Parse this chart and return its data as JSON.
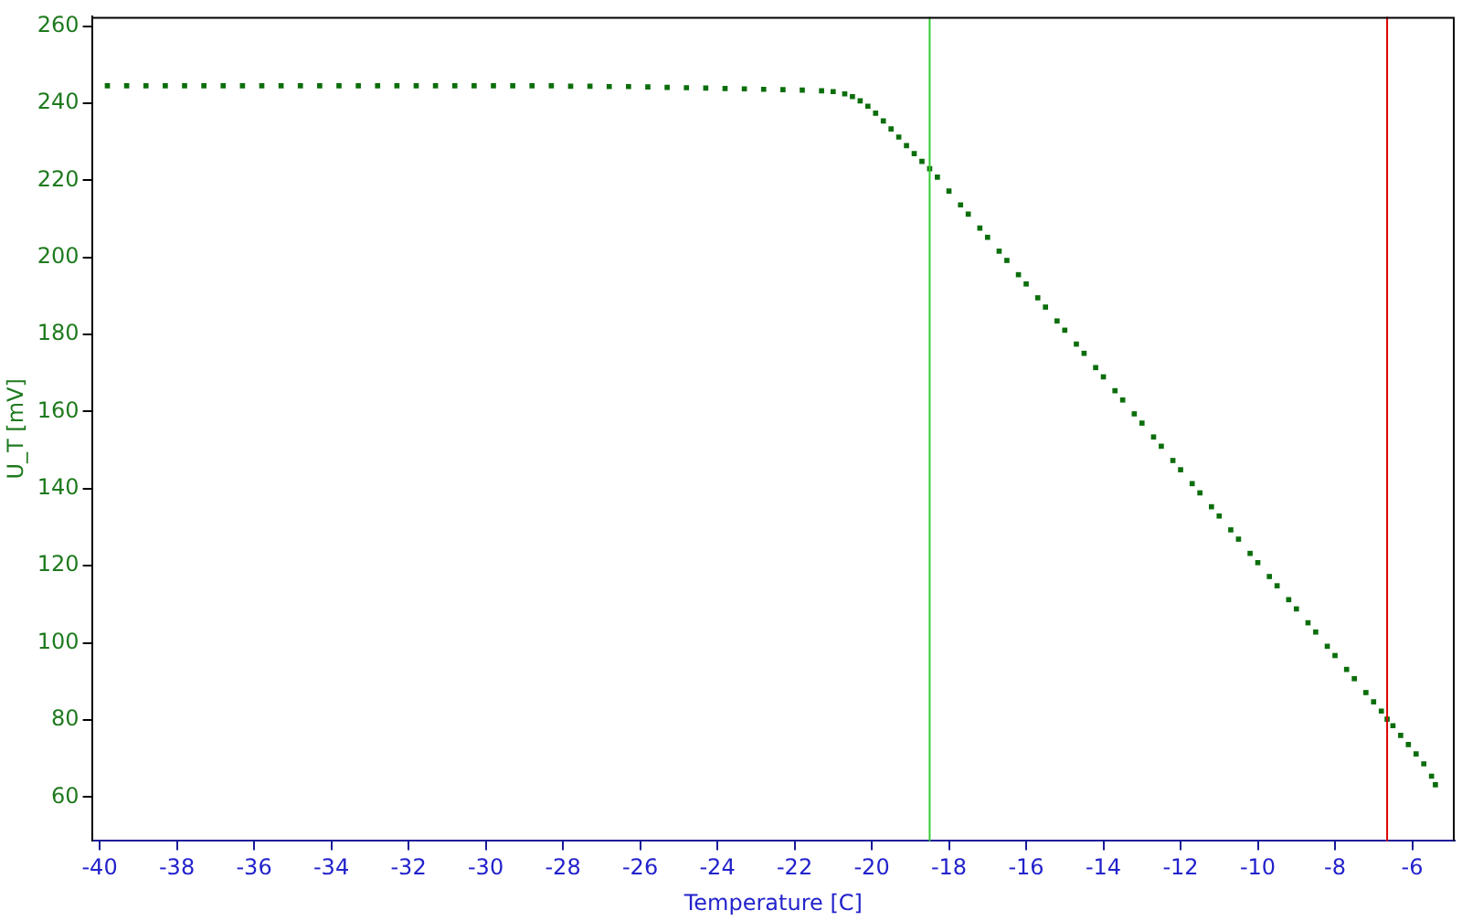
{
  "chart_data": {
    "type": "scatter",
    "xlabel": "Temperature [C]",
    "ylabel": "U_T [mV]",
    "xlim": [
      -40.2,
      -4.9
    ],
    "ylim": [
      48.6,
      262.4
    ],
    "xticks": [
      -40,
      -38,
      -36,
      -34,
      -32,
      -30,
      -28,
      -26,
      -24,
      -22,
      -20,
      -18,
      -16,
      -14,
      -12,
      -10,
      -8,
      -6
    ],
    "yticks": [
      60,
      80,
      100,
      120,
      140,
      160,
      180,
      200,
      220,
      240,
      260
    ],
    "grid": false,
    "legend": false,
    "marker": "square",
    "ref_lines": [
      {
        "axis": "x",
        "value": -18.5,
        "color": "#33cc33"
      },
      {
        "axis": "x",
        "value": -6.65,
        "color": "#dd0000"
      }
    ],
    "series": [
      {
        "color": "#0b6e0b",
        "x": [
          -39.8,
          -39.3,
          -38.8,
          -38.3,
          -37.8,
          -37.3,
          -36.8,
          -36.3,
          -35.8,
          -35.3,
          -34.8,
          -34.3,
          -33.8,
          -33.3,
          -32.8,
          -32.3,
          -31.8,
          -31.3,
          -30.8,
          -30.3,
          -29.8,
          -29.3,
          -28.8,
          -28.3,
          -27.8,
          -27.3,
          -26.8,
          -26.3,
          -25.8,
          -25.3,
          -24.8,
          -24.3,
          -23.8,
          -23.3,
          -22.8,
          -22.3,
          -21.8,
          -21.3,
          -21.0,
          -20.7,
          -20.5,
          -20.3,
          -20.1,
          -19.9,
          -19.7,
          -19.5,
          -19.3,
          -19.1,
          -18.9,
          -18.7,
          -18.5,
          -18.3,
          -18.0,
          -17.7,
          -17.5,
          -17.2,
          -17.0,
          -16.7,
          -16.5,
          -16.2,
          -16.0,
          -15.7,
          -15.5,
          -15.2,
          -15.0,
          -14.7,
          -14.5,
          -14.2,
          -14.0,
          -13.7,
          -13.5,
          -13.2,
          -13.0,
          -12.7,
          -12.5,
          -12.2,
          -12.0,
          -11.7,
          -11.5,
          -11.2,
          -11.0,
          -10.7,
          -10.5,
          -10.2,
          -10.0,
          -9.7,
          -9.5,
          -9.2,
          -9.0,
          -8.7,
          -8.5,
          -8.2,
          -8.0,
          -7.7,
          -7.5,
          -7.2,
          -7.0,
          -6.8,
          -6.65,
          -6.5,
          -6.3,
          -6.1,
          -5.9,
          -5.7,
          -5.5,
          -5.4
        ],
        "values": [
          244.5,
          244.5,
          244.5,
          244.5,
          244.5,
          244.5,
          244.5,
          244.5,
          244.5,
          244.5,
          244.5,
          244.5,
          244.5,
          244.5,
          244.5,
          244.5,
          244.5,
          244.5,
          244.5,
          244.5,
          244.5,
          244.5,
          244.5,
          244.5,
          244.4,
          244.4,
          244.3,
          244.3,
          244.2,
          244.1,
          244.0,
          243.9,
          243.8,
          243.7,
          243.6,
          243.5,
          243.4,
          243.2,
          243.0,
          242.4,
          241.7,
          240.6,
          239.2,
          237.4,
          235.4,
          233.3,
          231.2,
          229.0,
          226.9,
          224.9,
          223.0,
          220.8,
          217.2,
          213.6,
          211.2,
          207.6,
          205.2,
          201.6,
          199.2,
          195.5,
          193.1,
          189.5,
          187.1,
          183.5,
          181.1,
          177.5,
          175.1,
          171.4,
          169.0,
          165.4,
          163.0,
          159.4,
          157.0,
          153.4,
          151.0,
          147.3,
          144.9,
          141.3,
          138.9,
          135.3,
          132.9,
          129.3,
          126.9,
          123.2,
          120.8,
          117.2,
          114.8,
          111.2,
          108.8,
          105.2,
          102.8,
          99.1,
          96.7,
          93.1,
          90.7,
          87.1,
          84.7,
          82.3,
          80.2,
          78.5,
          76.0,
          73.6,
          71.2,
          68.6,
          65.4,
          63.2
        ]
      }
    ]
  }
}
